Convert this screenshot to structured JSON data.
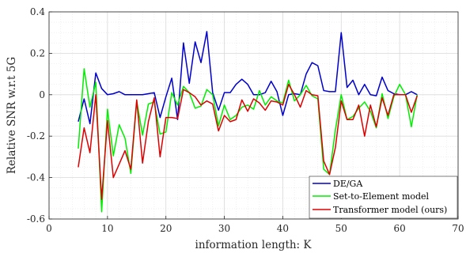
{
  "chart_data": {
    "type": "line",
    "title": "",
    "xlabel": "information length: K",
    "ylabel": "Relative SNR w.r.t 5G",
    "xlim": [
      0,
      70
    ],
    "ylim": [
      -0.6,
      0.4
    ],
    "x_ticks": [
      0,
      10,
      20,
      30,
      40,
      50,
      60,
      70
    ],
    "y_ticks": [
      -0.6,
      -0.4,
      -0.2,
      0,
      0.2,
      0.4
    ],
    "grid": true,
    "legend_position": "bottom-right",
    "series": [
      {
        "name": "DE/GA",
        "color": "#0000cc",
        "x": [
          5,
          6,
          7,
          8,
          9,
          10,
          11,
          12,
          13,
          14,
          15,
          16,
          17,
          18,
          19,
          20,
          21,
          22,
          23,
          24,
          25,
          26,
          27,
          28,
          29,
          30,
          31,
          32,
          33,
          34,
          35,
          36,
          37,
          38,
          39,
          40,
          41,
          42,
          43,
          44,
          45,
          46,
          47,
          48,
          49,
          50,
          51,
          52,
          53,
          54,
          55,
          56,
          57,
          58,
          59,
          60,
          61,
          62,
          63
        ],
        "y": [
          -0.13,
          -0.02,
          -0.14,
          0.105,
          0.03,
          0.0,
          0.005,
          0.015,
          0.0,
          0.0,
          0.0,
          0.0,
          0.005,
          0.01,
          -0.11,
          -0.01,
          0.08,
          -0.12,
          0.25,
          0.055,
          0.255,
          0.155,
          0.305,
          0.01,
          -0.075,
          0.01,
          0.01,
          0.05,
          0.075,
          0.05,
          0.0,
          0.0,
          0.01,
          0.065,
          0.015,
          -0.1,
          0.0,
          0.005,
          0.0,
          0.1,
          0.155,
          0.14,
          0.02,
          0.015,
          0.015,
          0.3,
          0.035,
          0.07,
          0.0,
          0.05,
          0.0,
          -0.005,
          0.085,
          0.02,
          0.005,
          0.0,
          0.0,
          0.015,
          0.0
        ]
      },
      {
        "name": "Set-to-Element model",
        "color": "#00ee00",
        "x": [
          5,
          6,
          7,
          8,
          9,
          10,
          11,
          12,
          13,
          14,
          15,
          16,
          17,
          18,
          19,
          20,
          21,
          22,
          23,
          24,
          25,
          26,
          27,
          28,
          29,
          30,
          31,
          32,
          33,
          34,
          35,
          36,
          37,
          38,
          39,
          40,
          41,
          42,
          43,
          44,
          45,
          46,
          47,
          48,
          49,
          50,
          51,
          52,
          53,
          54,
          55,
          56,
          57,
          58,
          59,
          60,
          61,
          62,
          63
        ],
        "y": [
          -0.26,
          0.125,
          -0.06,
          0.06,
          -0.565,
          -0.07,
          -0.295,
          -0.145,
          -0.21,
          -0.38,
          -0.03,
          -0.195,
          -0.045,
          -0.035,
          -0.19,
          -0.18,
          0.01,
          -0.05,
          0.04,
          0.01,
          -0.065,
          -0.055,
          0.025,
          0.0,
          -0.15,
          -0.05,
          -0.12,
          -0.1,
          -0.06,
          -0.05,
          -0.07,
          0.02,
          -0.05,
          -0.01,
          -0.03,
          -0.04,
          0.07,
          -0.03,
          0.0,
          0.045,
          -0.005,
          -0.02,
          -0.36,
          -0.385,
          -0.17,
          0.0,
          -0.12,
          -0.105,
          -0.065,
          -0.035,
          -0.08,
          -0.16,
          0.005,
          -0.115,
          -0.01,
          0.05,
          0.0,
          -0.155,
          0.0
        ]
      },
      {
        "name": "Transformer model (ours)",
        "color": "#dd0000",
        "x": [
          5,
          6,
          7,
          8,
          9,
          10,
          11,
          12,
          13,
          14,
          15,
          16,
          17,
          18,
          19,
          20,
          21,
          22,
          23,
          24,
          25,
          26,
          27,
          28,
          29,
          30,
          31,
          32,
          33,
          34,
          35,
          36,
          37,
          38,
          39,
          40,
          41,
          42,
          43,
          44,
          45,
          46,
          47,
          48,
          49,
          50,
          51,
          52,
          53,
          54,
          55,
          56,
          57,
          58,
          59,
          60,
          61,
          62,
          63
        ],
        "y": [
          -0.35,
          -0.16,
          -0.28,
          0.0,
          -0.505,
          -0.125,
          -0.4,
          -0.335,
          -0.27,
          -0.36,
          -0.025,
          -0.33,
          -0.13,
          -0.015,
          -0.3,
          -0.11,
          -0.11,
          -0.115,
          0.025,
          0.01,
          -0.01,
          -0.05,
          -0.03,
          -0.045,
          -0.175,
          -0.1,
          -0.13,
          -0.12,
          -0.025,
          -0.08,
          -0.02,
          -0.04,
          -0.075,
          -0.03,
          -0.035,
          -0.05,
          0.05,
          0.0,
          -0.06,
          0.02,
          0.0,
          -0.005,
          -0.32,
          -0.385,
          -0.255,
          -0.03,
          -0.12,
          -0.12,
          -0.05,
          -0.2,
          -0.05,
          -0.155,
          -0.015,
          -0.1,
          0.0,
          0.0,
          0.0,
          -0.085,
          -0.005
        ]
      }
    ]
  }
}
